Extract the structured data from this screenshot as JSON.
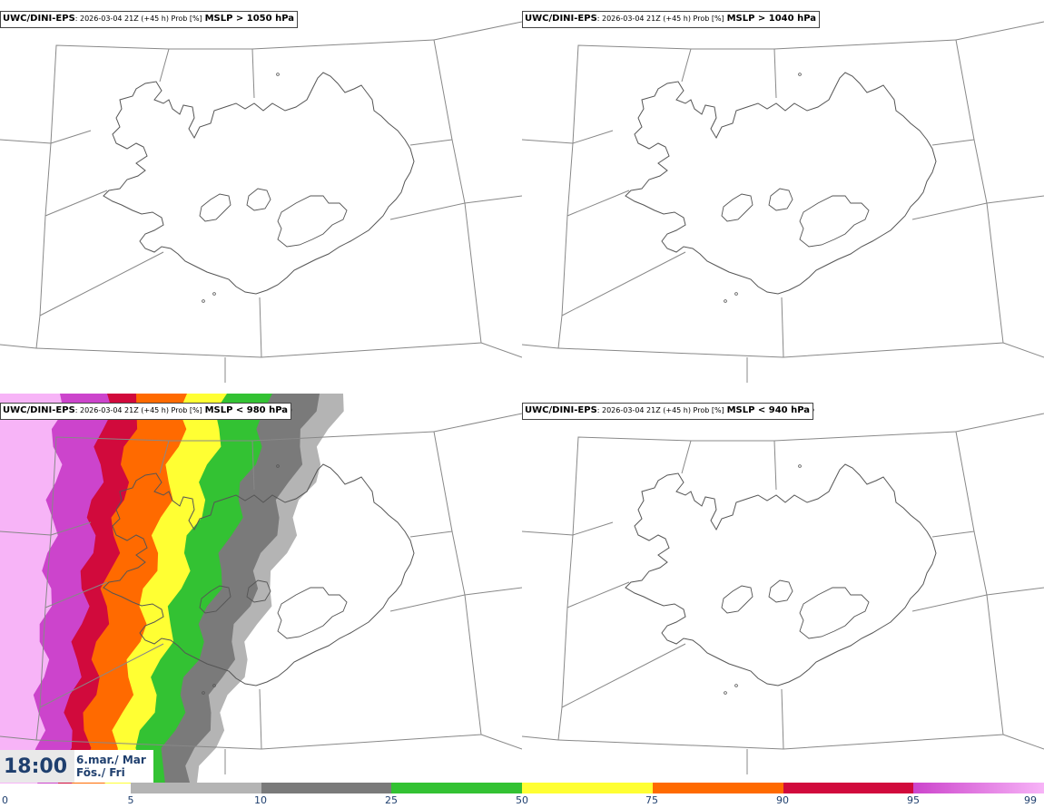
{
  "panels": [
    {
      "model": "UWC/DINI-EPS",
      "meta": ": 2026-03-04 21Z (+45 h) Prob [%]",
      "variable": "MSLP > 1050 hPa"
    },
    {
      "model": "UWC/DINI-EPS",
      "meta": ": 2026-03-04 21Z (+45 h) Prob [%]",
      "variable": "MSLP > 1040 hPa"
    },
    {
      "model": "UWC/DINI-EPS",
      "meta": ": 2026-03-04 21Z (+45 h) Prob [%]",
      "variable": "MSLP < 980 hPa"
    },
    {
      "model": "UWC/DINI-EPS",
      "meta": ": 2026-03-04 21Z (+45 h) Prob [%]",
      "variable": "MSLP < 940 hPa"
    }
  ],
  "time": {
    "clock": "18:00",
    "date_line1": "6.mar./ Mar",
    "date_line2": "Fös./ Fri"
  },
  "colorbar": {
    "ticks": [
      "0",
      "5",
      "10",
      "25",
      "50",
      "75",
      "90",
      "95",
      "99"
    ],
    "colors": [
      "#ffffff",
      "#b4b4b4",
      "#7a7a7a",
      "#33c233",
      "#ffff33",
      "#ff6a00",
      "#d10a3c",
      "#cc44cc",
      "#f7b4f7"
    ]
  }
}
